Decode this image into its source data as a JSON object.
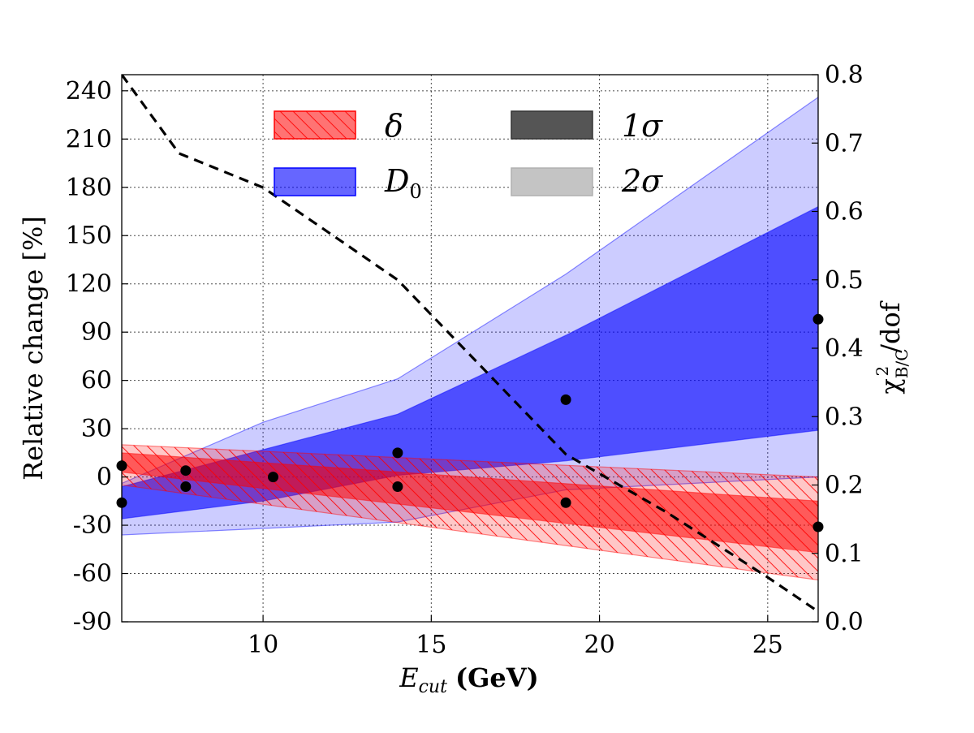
{
  "chart_data": {
    "type": "area",
    "xlabel": "E_cut (GeV)",
    "xlabel_main": "E",
    "xlabel_sub": "cut",
    "xlabel_unit": "(GeV)",
    "ylabel": "Relative change [%]",
    "y2label": "χ²_B/C/dof",
    "y2label_main": "χ",
    "y2label_sup": "2",
    "y2label_sub": "B/C",
    "y2label_tail": "/dof",
    "xlim": [
      5.8,
      26.5
    ],
    "ylim": [
      -90,
      250
    ],
    "y2lim": [
      0.0,
      0.8
    ],
    "xticks": [
      10,
      15,
      20,
      25
    ],
    "yticks": [
      -90,
      -60,
      -30,
      0,
      30,
      60,
      90,
      120,
      150,
      180,
      210,
      240
    ],
    "y2ticks": [
      "0.0",
      "0.1",
      "0.2",
      "0.3",
      "0.4",
      "0.5",
      "0.6",
      "0.7",
      "0.8"
    ],
    "grid": true,
    "legend": [
      {
        "key": "delta",
        "label": "δ",
        "color": "#ff0000",
        "hatch": true
      },
      {
        "key": "d0",
        "label": "D",
        "sub": "0",
        "color": "#0000ff"
      },
      {
        "key": "one_sigma",
        "label": "1σ",
        "color": "#555555"
      },
      {
        "key": "two_sigma",
        "label": "2σ",
        "color": "#c4c4c4"
      }
    ],
    "legend_position": "top-center",
    "series": [
      {
        "name": "D0 2σ band",
        "color": "#0000ff",
        "alpha": 0.2,
        "x": [
          5.8,
          10,
          14,
          19,
          26.5
        ],
        "upper": [
          -4,
          34,
          61,
          126,
          236
        ],
        "lower": [
          -36,
          -32,
          -28,
          -8,
          0
        ]
      },
      {
        "name": "D0 1σ band",
        "color": "#0000ff",
        "alpha": 0.62,
        "x": [
          5.8,
          10,
          14,
          19,
          26.5
        ],
        "upper": [
          -6,
          17,
          39,
          88,
          168
        ],
        "lower": [
          -26,
          -15,
          1,
          10,
          29
        ]
      },
      {
        "name": "δ 2σ band",
        "color": "#ff0000",
        "alpha": 0.22,
        "hatch": true,
        "x": [
          5.8,
          26.5
        ],
        "upper": [
          20,
          0
        ],
        "lower": [
          -5,
          -64
        ]
      },
      {
        "name": "δ 1σ band",
        "color": "#ff0000",
        "alpha": 0.55,
        "x": [
          5.8,
          26.5
        ],
        "upper": [
          15,
          -15
        ],
        "lower": [
          3,
          -47
        ]
      },
      {
        "name": "χ²_B/C/dof",
        "style": "dashed",
        "axis": "right",
        "x": [
          5.8,
          7.5,
          10,
          14,
          19,
          22,
          25,
          26.5
        ],
        "y": [
          0.8,
          0.685,
          0.635,
          0.5,
          0.245,
          0.16,
          0.065,
          0.015
        ]
      },
      {
        "name": "best-fit points",
        "style": "markers",
        "x": [
          5.8,
          5.8,
          7.7,
          7.7,
          10.3,
          14,
          14,
          19,
          19,
          26.5,
          26.5
        ],
        "y": [
          7,
          -16,
          4,
          -6,
          0,
          15,
          -6,
          48,
          -16,
          98,
          -31
        ]
      }
    ]
  }
}
